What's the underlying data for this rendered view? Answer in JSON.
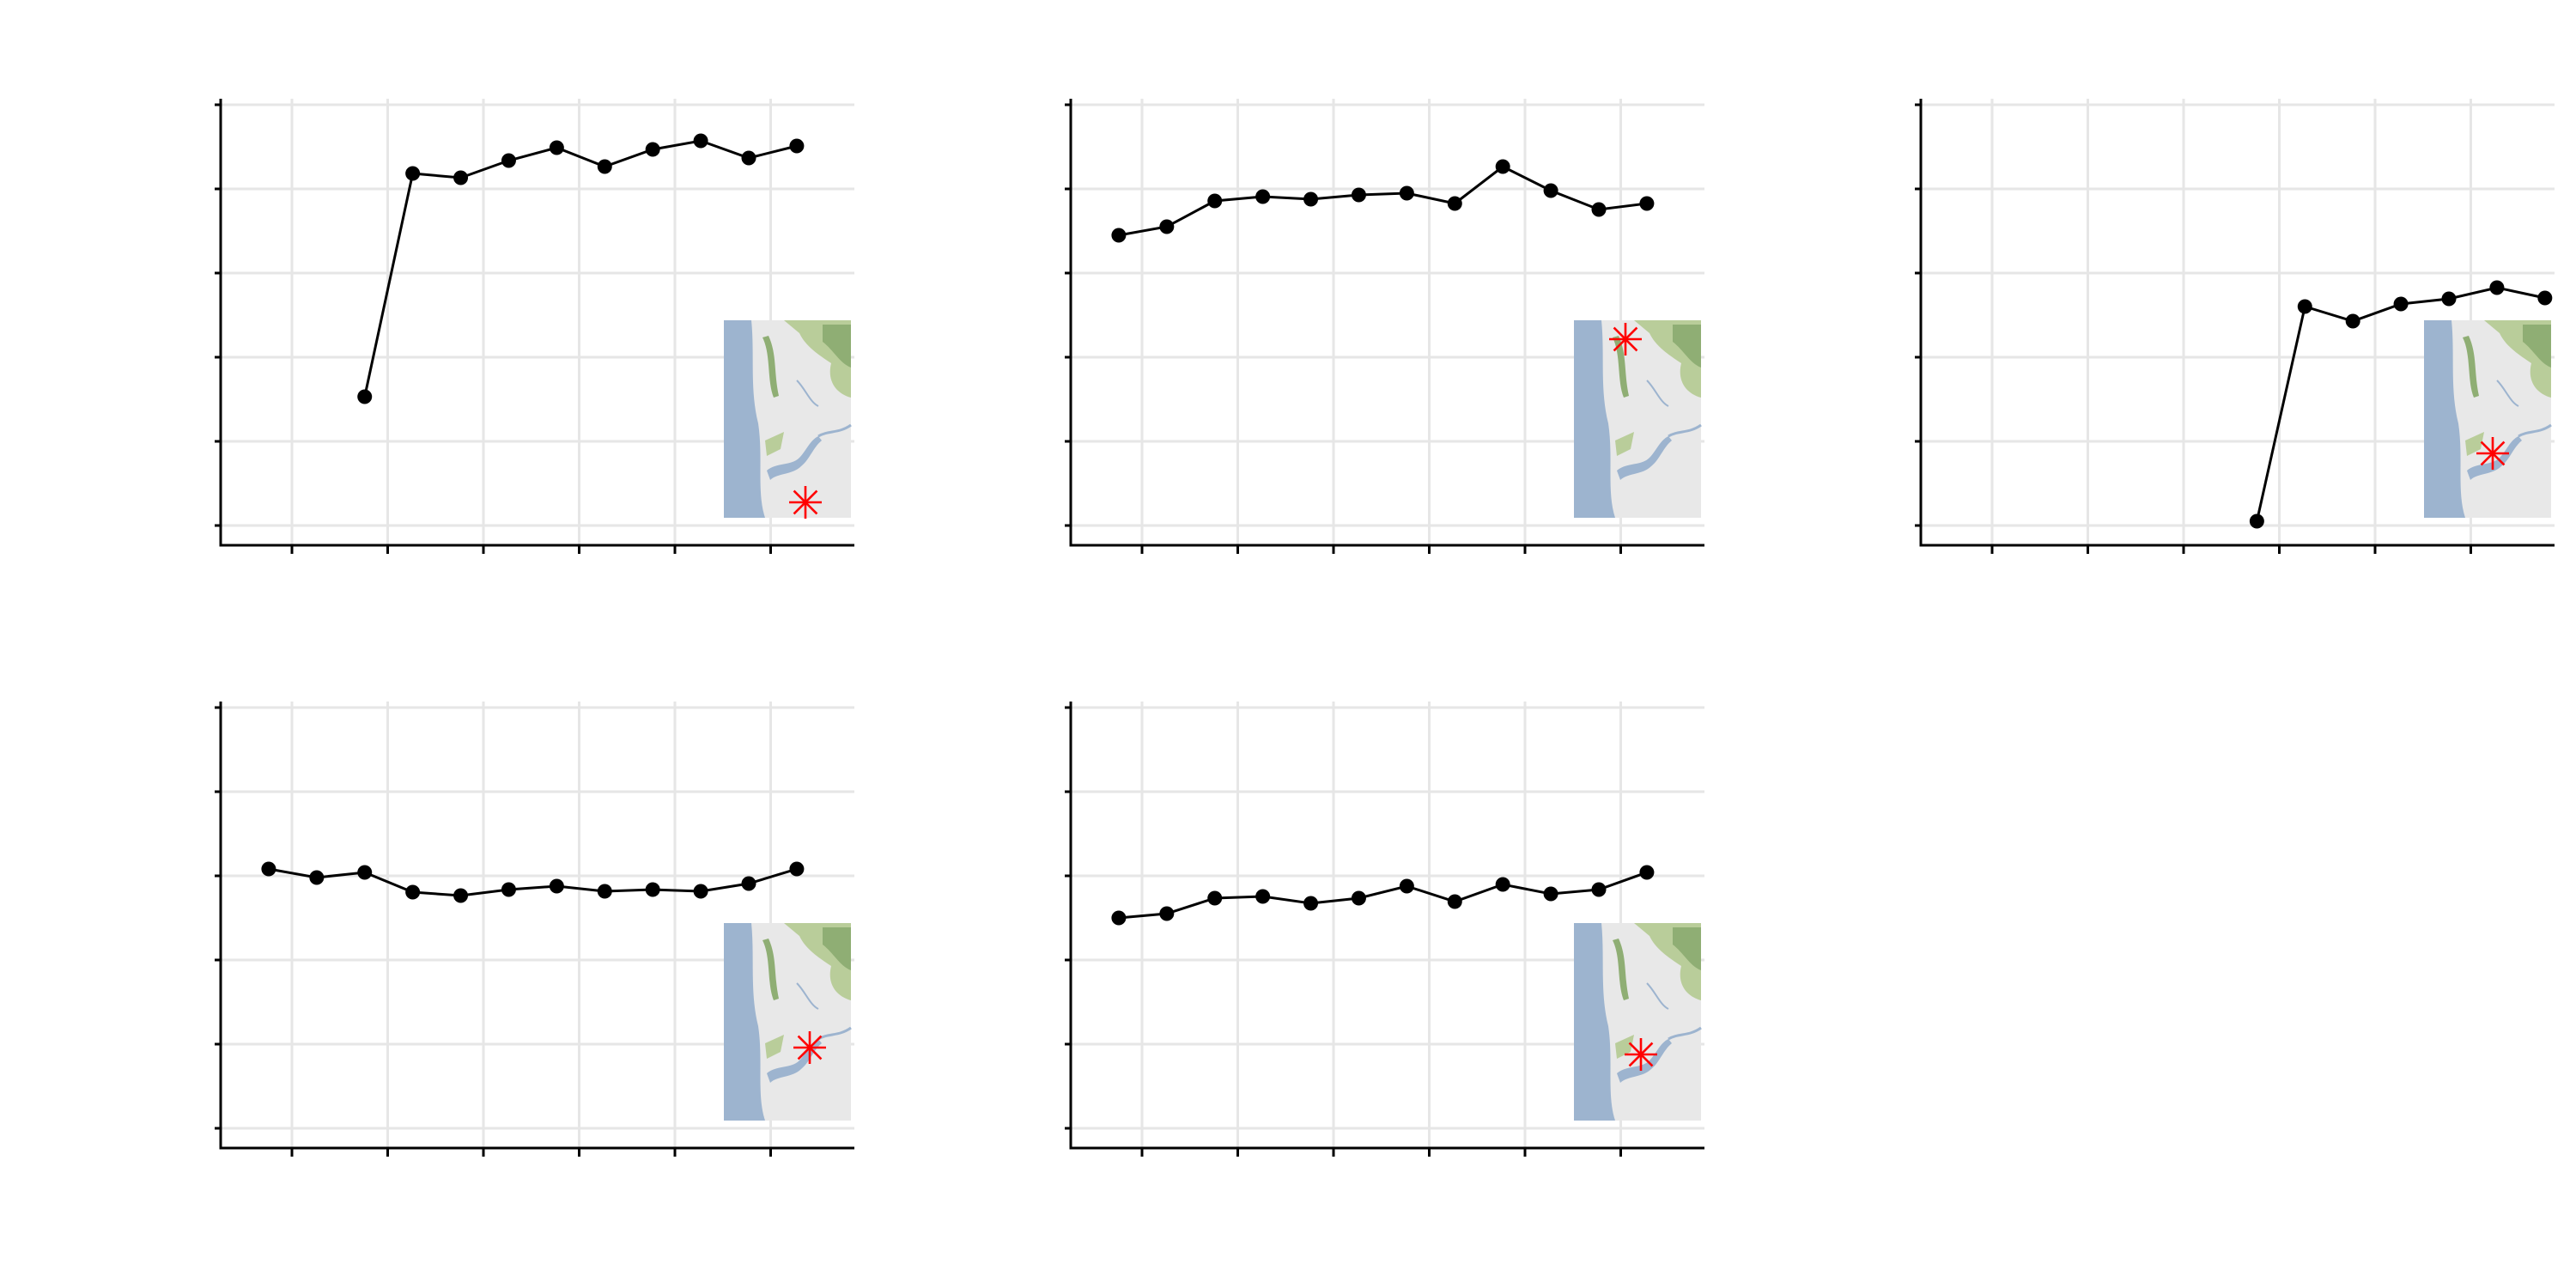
{
  "colors": {
    "grid": "#e6e6e6",
    "axis": "#000000",
    "line": "#000000",
    "point": "#000000",
    "marker": "#ff0000",
    "map_water": "#9db4cf",
    "map_land": "#e8e8e8",
    "map_green": "#b9cd9a",
    "map_dark_green": "#8fae74"
  },
  "chart_data": [
    {
      "type": "line",
      "panel": "top-left",
      "x": [
        3,
        4,
        5,
        6,
        7,
        8,
        9,
        10,
        11,
        12
      ],
      "values": [
        1.6,
        4.2,
        4.15,
        4.35,
        4.5,
        4.28,
        4.48,
        4.58,
        4.38,
        4.52
      ],
      "xlim": [
        0,
        13.2
      ],
      "ylim": [
        0,
        5
      ],
      "inset_map": {
        "marker": "star",
        "location": "bottom-right"
      }
    },
    {
      "type": "line",
      "panel": "top-middle",
      "x": [
        1,
        2,
        3,
        4,
        5,
        6,
        7,
        8,
        9,
        10,
        11,
        12
      ],
      "values": [
        3.48,
        3.58,
        3.88,
        3.93,
        3.9,
        3.95,
        3.97,
        3.85,
        4.28,
        4.0,
        3.78,
        3.85
      ],
      "xlim": [
        0,
        13.2
      ],
      "ylim": [
        0,
        5
      ],
      "inset_map": {
        "marker": "star",
        "location": "north"
      }
    },
    {
      "type": "line",
      "panel": "top-right",
      "x": [
        7,
        8,
        9,
        10,
        11,
        12,
        13
      ],
      "values": [
        0.15,
        2.65,
        2.48,
        2.68,
        2.74,
        2.87,
        2.75
      ],
      "xlim": [
        0,
        13.2
      ],
      "ylim": [
        0,
        5
      ],
      "inset_map": {
        "marker": "star",
        "location": "south-central"
      }
    },
    {
      "type": "line",
      "panel": "bottom-left",
      "x": [
        1,
        2,
        3,
        4,
        5,
        6,
        7,
        8,
        9,
        10,
        11,
        12
      ],
      "values": [
        3.12,
        3.02,
        3.08,
        2.85,
        2.81,
        2.88,
        2.92,
        2.86,
        2.88,
        2.86,
        2.95,
        3.12
      ],
      "xlim": [
        0,
        13.2
      ],
      "ylim": [
        0,
        5
      ],
      "inset_map": {
        "marker": "star",
        "location": "south-east"
      }
    },
    {
      "type": "line",
      "panel": "bottom-middle",
      "x": [
        1,
        2,
        3,
        4,
        5,
        6,
        7,
        8,
        9,
        10,
        11,
        12
      ],
      "values": [
        2.55,
        2.6,
        2.78,
        2.8,
        2.72,
        2.78,
        2.92,
        2.74,
        2.94,
        2.83,
        2.88,
        3.08
      ],
      "xlim": [
        0,
        13.2
      ],
      "ylim": [
        0,
        5
      ],
      "inset_map": {
        "marker": "star",
        "location": "south"
      }
    }
  ]
}
